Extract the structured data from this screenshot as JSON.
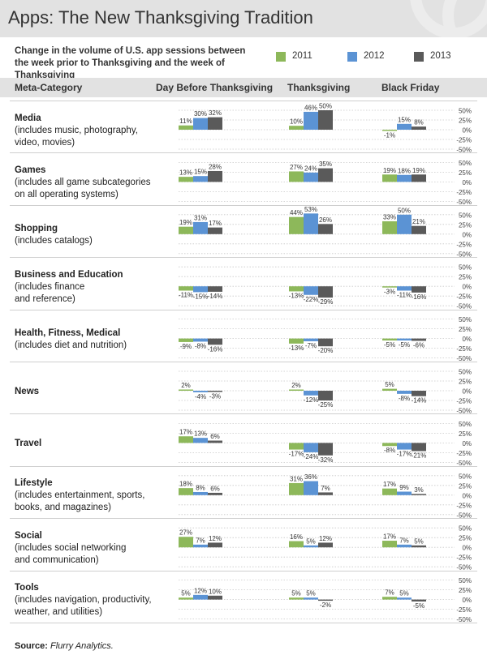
{
  "title": "Apps: The New Thanksgiving Tradition",
  "subtitle": "Change in the volume of U.S. app sessions between the week prior to Thanksgiving and the week of Thanksgiving",
  "legend": [
    {
      "label": "2011",
      "color": "#8db85a"
    },
    {
      "label": "2012",
      "color": "#5b93d4"
    },
    {
      "label": "2013",
      "color": "#5a5a5a"
    }
  ],
  "header": {
    "category": "Meta-Category",
    "col1": "Day Before Thanksgiving",
    "col2": "Thanksgiving",
    "col3": "Black Friday"
  },
  "source_label": "Source:",
  "source_value": "Flurry Analytics.",
  "chart_data": {
    "type": "bar",
    "title": "Apps: The New Thanksgiving Tradition",
    "columns": [
      "Day Before Thanksgiving",
      "Thanksgiving",
      "Black Friday"
    ],
    "series_names": [
      "2011",
      "2012",
      "2013"
    ],
    "axis_ticks": [
      "50%",
      "25%",
      "0%",
      "-25%",
      "-50%"
    ],
    "ylim": [
      -50,
      50
    ],
    "rows": [
      {
        "name": "Media",
        "desc": "(includes music, photography,\nvideo, movies)",
        "values": [
          [
            11,
            30,
            32
          ],
          [
            10,
            46,
            50
          ],
          [
            -1,
            15,
            8
          ]
        ]
      },
      {
        "name": "Games",
        "desc": "(includes all game subcategories\non all operating systems)",
        "values": [
          [
            13,
            15,
            28
          ],
          [
            27,
            24,
            35
          ],
          [
            19,
            18,
            19
          ]
        ]
      },
      {
        "name": "Shopping",
        "desc": "(includes catalogs)",
        "values": [
          [
            19,
            31,
            17
          ],
          [
            44,
            53,
            26
          ],
          [
            33,
            50,
            21
          ]
        ]
      },
      {
        "name": "Business and Education",
        "desc": "(includes finance\nand reference)",
        "values": [
          [
            -11,
            -15,
            -14
          ],
          [
            -13,
            -22,
            -29
          ],
          [
            -3,
            -11,
            -16
          ]
        ]
      },
      {
        "name": "Health, Fitness, Medical",
        "desc": "(includes diet and nutrition)",
        "values": [
          [
            -9,
            -8,
            -16
          ],
          [
            -13,
            -7,
            -20
          ],
          [
            -5,
            -5,
            -6
          ]
        ]
      },
      {
        "name": "News",
        "desc": "",
        "values": [
          [
            2,
            -4,
            -3
          ],
          [
            2,
            -12,
            -25
          ],
          [
            5,
            -8,
            -14
          ]
        ]
      },
      {
        "name": "Travel",
        "desc": "",
        "values": [
          [
            17,
            13,
            6
          ],
          [
            -17,
            -24,
            -32
          ],
          [
            -8,
            -17,
            -21
          ]
        ]
      },
      {
        "name": "Lifestyle",
        "desc": "(includes entertainment, sports,\nbooks, and magazines)",
        "values": [
          [
            18,
            8,
            6
          ],
          [
            31,
            36,
            7
          ],
          [
            17,
            9,
            3
          ]
        ]
      },
      {
        "name": "Social",
        "desc": "(includes social networking\nand communication)",
        "values": [
          [
            27,
            7,
            12
          ],
          [
            16,
            5,
            12
          ],
          [
            17,
            7,
            5
          ]
        ]
      },
      {
        "name": "Tools",
        "desc": "(includes navigation, productivity,\nweather, and utilities)",
        "values": [
          [
            5,
            12,
            10
          ],
          [
            5,
            5,
            -2
          ],
          [
            7,
            5,
            -5
          ]
        ]
      }
    ]
  }
}
